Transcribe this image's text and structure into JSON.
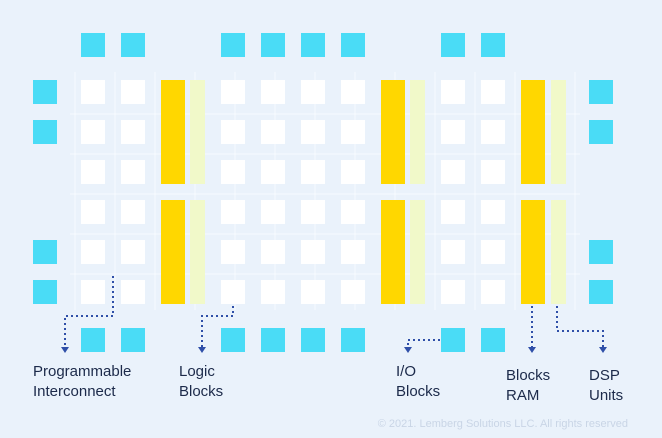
{
  "labels": [
    {
      "lines": [
        "Programmable",
        "Interconnect"
      ]
    },
    {
      "lines": [
        "Logic",
        "Blocks"
      ]
    },
    {
      "lines": [
        "I/O",
        "Blocks"
      ]
    },
    {
      "lines": [
        "Blocks",
        "RAM"
      ]
    },
    {
      "lines": [
        "DSP",
        "Units"
      ]
    }
  ],
  "copyright": "© 2021. Lemberg Solutions LLC. All rights reserved"
}
